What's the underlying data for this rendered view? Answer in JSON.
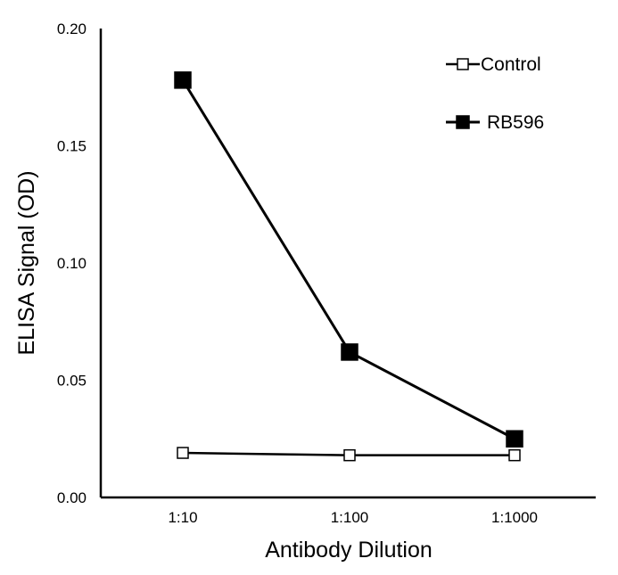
{
  "chart_data": {
    "type": "line",
    "categories": [
      "1:10",
      "1:100",
      "1:1000"
    ],
    "xlabel": "Antibody Dilution",
    "ylabel": "ELISA Signal (OD)",
    "ylim": [
      0,
      0.2
    ],
    "yticks": [
      "0.00",
      "0.05",
      "0.10",
      "0.15",
      "0.20"
    ],
    "grid": false,
    "legend_position": "top-right",
    "series": [
      {
        "name": "Control",
        "values": [
          0.019,
          0.018,
          0.018
        ],
        "marker": "open-square",
        "color": "#000000"
      },
      {
        "name": "RB596",
        "values": [
          0.178,
          0.062,
          0.025
        ],
        "marker": "filled-square",
        "color": "#000000"
      }
    ]
  }
}
